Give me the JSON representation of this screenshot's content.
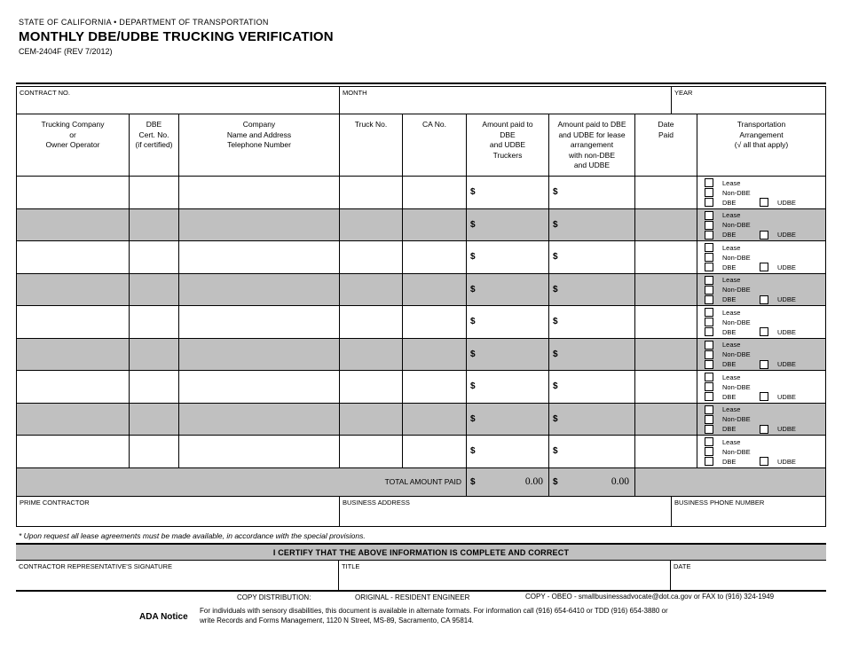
{
  "letterhead": {
    "agency": "STATE OF CALIFORNIA • DEPARTMENT OF TRANSPORTATION",
    "title": "MONTHLY DBE/UDBE TRUCKING VERIFICATION",
    "form_number": "CEM-2404F (REV 7/2012)"
  },
  "info_row": {
    "contract_no_label": "CONTRACT NO.",
    "month_label": "MONTH",
    "year_label": "YEAR"
  },
  "table": {
    "headers": [
      "Trucking Company\nor\nOwner Operator",
      "DBE\nCert. No.\n(if certified)",
      "Company\nName and Address\nTelephone Number",
      "Truck No.",
      "CA No.",
      "Amount paid to\nDBE\nand UDBE\nTruckers",
      "Amount paid to DBE\nand UDBE for lease\narrangement\nwith non-DBE\nand UDBE",
      "Date\nPaid",
      "Transportation\nArrangement\n(√ all that apply)"
    ],
    "row_count": 9,
    "dollar": "$",
    "checkboxes": {
      "lease": "Lease",
      "non_dbe": "Non-DBE",
      "dbe": "DBE",
      "udbe": "UDBE"
    },
    "total": {
      "label": "TOTAL AMOUNT PAID",
      "dollar": "$",
      "truckers_total": "0.00",
      "lease_total": "0.00"
    }
  },
  "contractor_row": {
    "prime_label": "PRIME CONTRACTOR",
    "address_label": "BUSINESS ADDRESS",
    "phone_label": "BUSINESS PHONE NUMBER"
  },
  "lease_note": "* Upon request all lease agreements must be made available, in accordance with the special provisions.",
  "certify_statement": "I CERTIFY THAT THE ABOVE INFORMATION IS COMPLETE AND CORRECT",
  "signature_row": {
    "signature_label": "CONTRACTOR REPRESENTATIVE'S SIGNATURE",
    "title_label": "TITLE",
    "date_label": "DATE"
  },
  "footer": {
    "copy_distribution_label": "COPY DISTRIBUTION:",
    "original_label": "ORIGINAL - RESIDENT ENGINEER",
    "copy_label": "COPY - OBEO - smallbusinessadvocate@dot.ca.gov or FAX to (916) 324-1949",
    "ada_label": "ADA Notice",
    "ada_text": "For individuals with sensory disabilities, this document is available in alternate formats.  For information call (916) 654-6410 or TDD (916) 654-3880 or\nwrite Records and Forms Management, 1120 N Street, MS-89, Sacramento, CA 95814."
  },
  "colors": {
    "row_shade": "#c0c0c0",
    "border": "#000000"
  }
}
